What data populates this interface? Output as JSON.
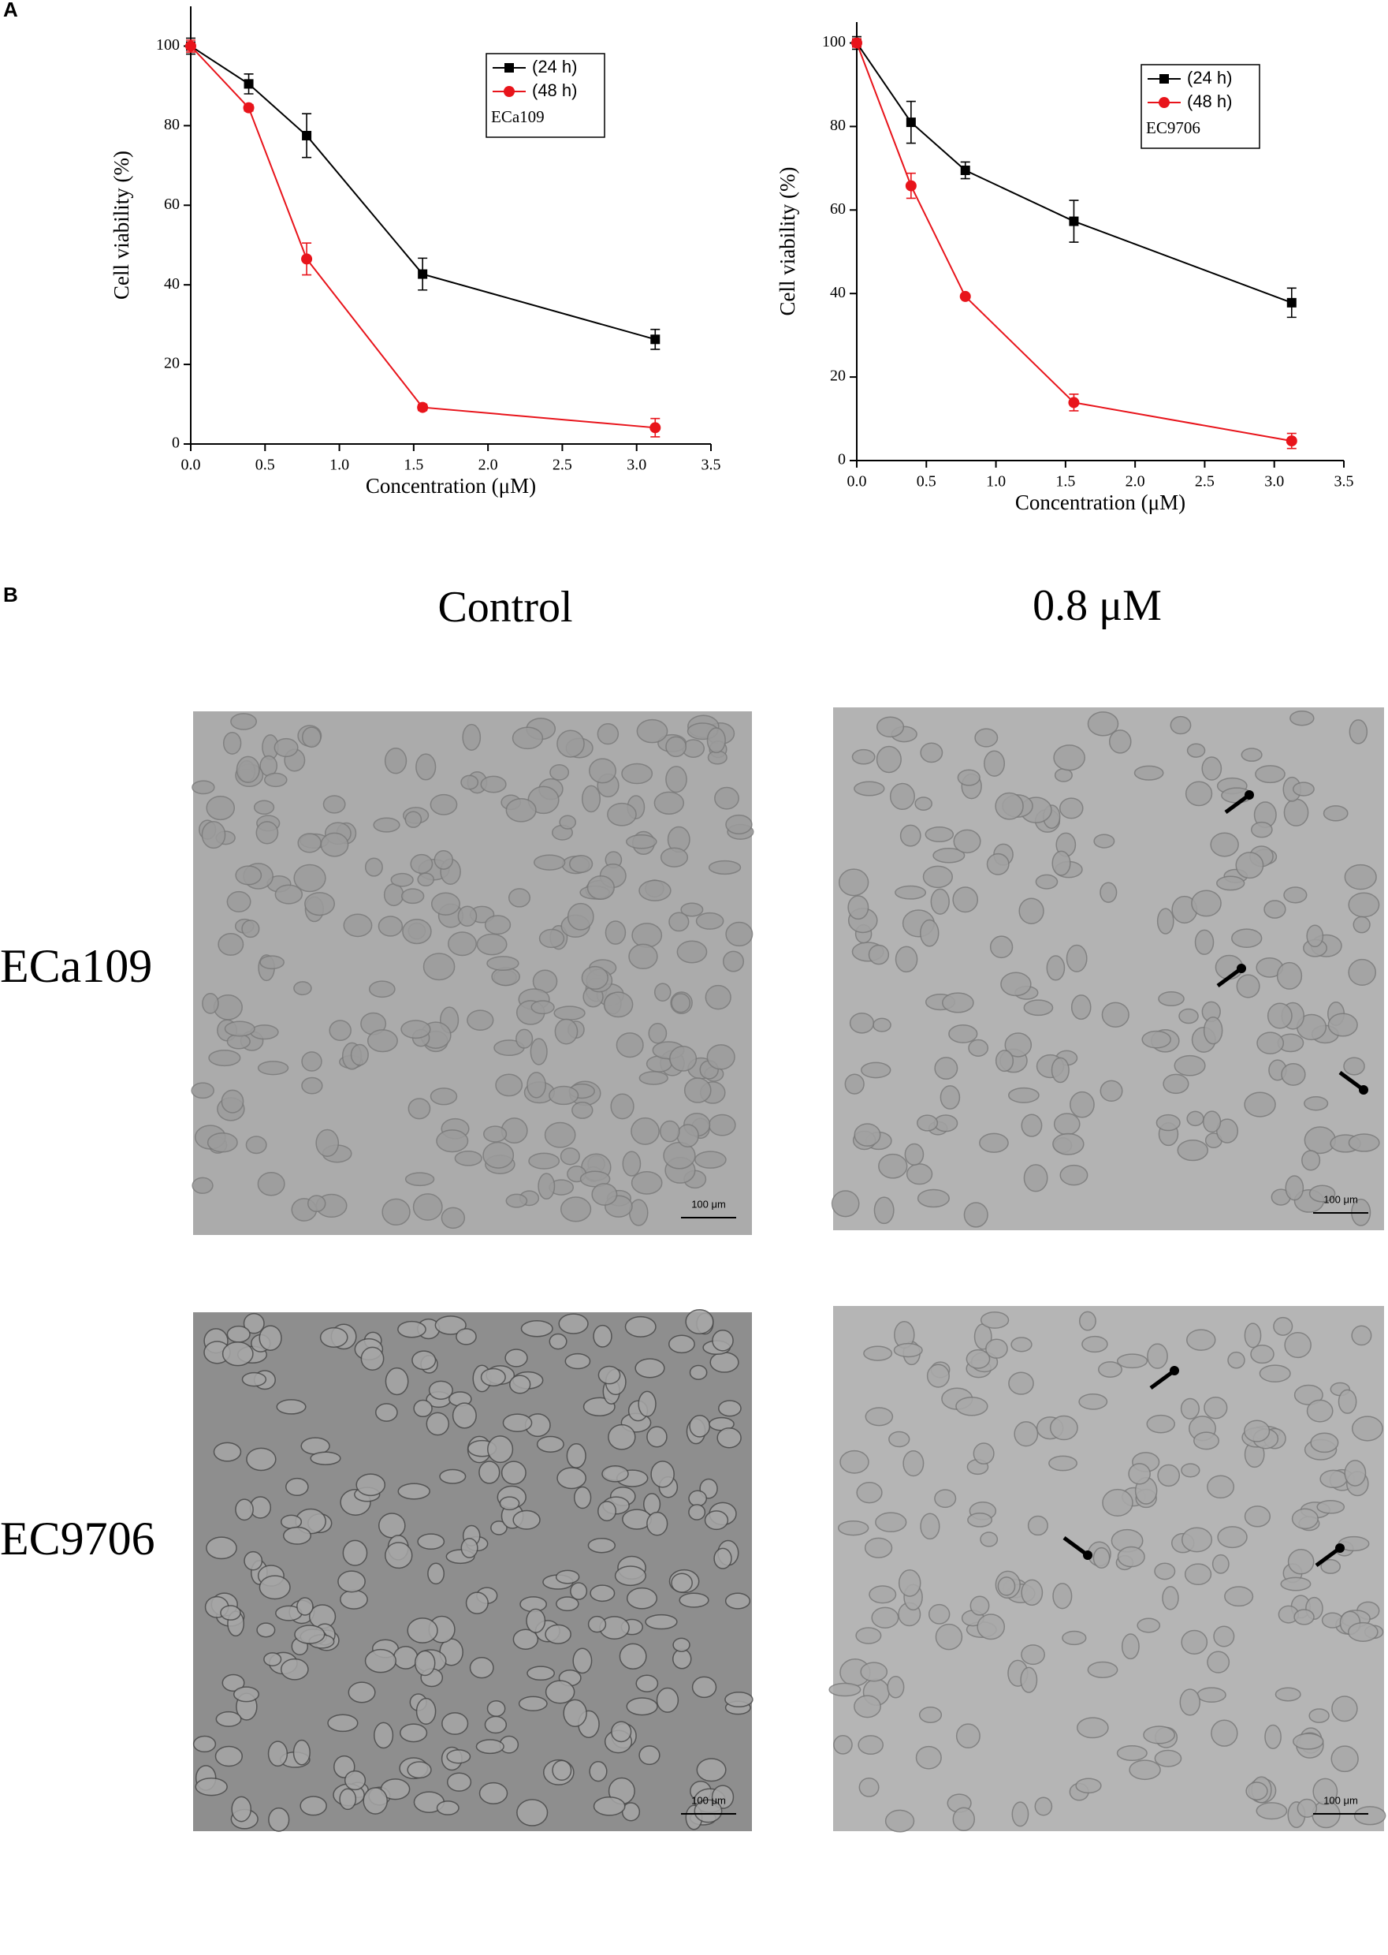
{
  "chart_data": [
    {
      "type": "line",
      "annotation": "ECa109",
      "xlabel": "Concentration (μM)",
      "ylabel": "Cell viability (%)",
      "x": [
        0,
        0.39,
        0.78,
        1.56,
        3.125
      ],
      "series": [
        {
          "name": "(24 h)",
          "color": "#000000",
          "marker": "square",
          "values": [
            100,
            90.5,
            77.5,
            42.7,
            26.3
          ],
          "errors": [
            2,
            2.5,
            5.5,
            4,
            2.5
          ]
        },
        {
          "name": "(48 h)",
          "color": "#e8141b",
          "marker": "circle",
          "values": [
            100,
            84.5,
            46.5,
            9.2,
            4.1
          ],
          "errors": [
            1.5,
            0.8,
            4,
            0.8,
            2.3
          ]
        }
      ],
      "xlim": [
        0,
        3.5
      ],
      "ylim": [
        0,
        110
      ],
      "xticks": [
        {
          "value": 0,
          "label": "0.0"
        },
        0.5,
        {
          "value": 1,
          "label": "1.0"
        },
        1.5,
        {
          "value": 2,
          "label": "2.0"
        },
        2.5,
        {
          "value": 3,
          "label": "3.0"
        },
        3.5
      ],
      "yticks": [
        0,
        20,
        40,
        60,
        80,
        100
      ]
    },
    {
      "type": "line",
      "annotation": "EC9706",
      "xlabel": "Concentration (μM)",
      "ylabel": "Cell viability (%)",
      "x": [
        0,
        0.39,
        0.78,
        1.56,
        3.125
      ],
      "series": [
        {
          "name": "(24 h)",
          "color": "#000000",
          "marker": "square",
          "values": [
            100,
            81,
            69.5,
            57.3,
            37.8
          ],
          "errors": [
            1.5,
            5,
            2,
            5,
            3.5
          ]
        },
        {
          "name": "(48 h)",
          "color": "#e8141b",
          "marker": "circle",
          "values": [
            100,
            65.8,
            39.3,
            13.9,
            4.7
          ],
          "errors": [
            1,
            3,
            0.5,
            2,
            1.8
          ]
        }
      ],
      "xlim": [
        0,
        3.5
      ],
      "ylim": [
        0,
        105
      ],
      "xticks": [
        {
          "value": 0,
          "label": "0.0"
        },
        0.5,
        {
          "value": 1,
          "label": "1.0"
        },
        1.5,
        {
          "value": 2,
          "label": "2.0"
        },
        2.5,
        {
          "value": 3,
          "label": "3.0"
        },
        3.5
      ],
      "yticks": [
        0,
        20,
        40,
        60,
        80,
        100
      ]
    }
  ],
  "figure": {
    "label_a": "A",
    "label_b": "B",
    "columns": [
      "Control",
      "0.8 μM"
    ],
    "rows": [
      "ECa109",
      "EC9706"
    ],
    "scale_bar": "100 μm"
  }
}
